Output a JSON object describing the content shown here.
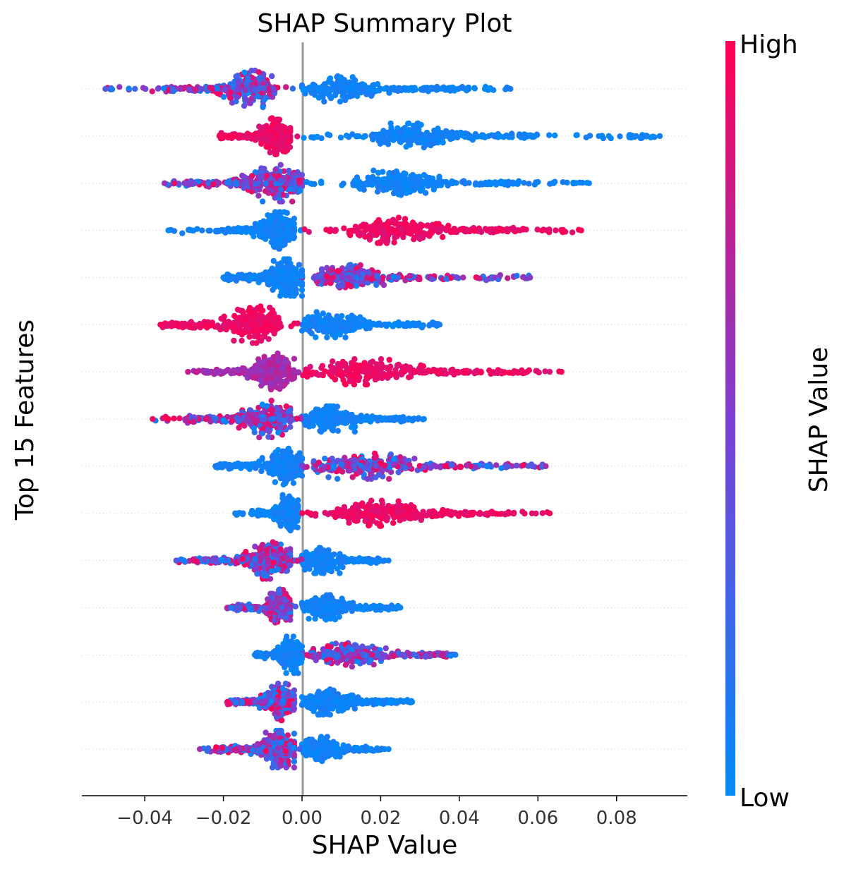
{
  "chart_data": {
    "type": "scatter",
    "subtype": "beeswarm",
    "title": "SHAP Summary Plot",
    "xlabel": "SHAP Value",
    "ylabel": "Top 15 Features",
    "xlim": [
      -0.056,
      0.098
    ],
    "xticks": [
      -0.04,
      -0.02,
      0.0,
      0.02,
      0.04,
      0.06,
      0.08
    ],
    "xtick_labels": [
      "−0.04",
      "−0.02",
      "0.00",
      "0.02",
      "0.04",
      "0.06",
      "0.08"
    ],
    "zero_line": 0.0,
    "grid": "dotted horizontal per feature row",
    "colorbar": {
      "label": "SHAP Value",
      "high_label": "High",
      "low_label": "Low",
      "high_color": "#ff0052",
      "mid_color": "#7d3fd3",
      "low_color": "#008bfb"
    },
    "features": [
      {
        "row": 1,
        "min": -0.05,
        "max": 0.053,
        "left_dense": [
          -0.035,
          -0.007
        ],
        "right_dense": [
          0.0,
          0.04
        ],
        "left_color": "mixed",
        "right_color": "low"
      },
      {
        "row": 2,
        "min": -0.021,
        "max": 0.091,
        "left_dense": [
          -0.021,
          -0.003
        ],
        "right_dense": [
          0.018,
          0.06
        ],
        "left_color": "high",
        "right_color": "low"
      },
      {
        "row": 3,
        "min": -0.035,
        "max": 0.073,
        "left_dense": [
          -0.03,
          0.0
        ],
        "right_dense": [
          0.013,
          0.055
        ],
        "left_color": "mixed",
        "right_color": "low"
      },
      {
        "row": 4,
        "min": -0.034,
        "max": 0.071,
        "left_dense": [
          -0.022,
          -0.002
        ],
        "right_dense": [
          0.012,
          0.058
        ],
        "left_color": "low",
        "right_color": "high"
      },
      {
        "row": 5,
        "min": -0.02,
        "max": 0.058,
        "left_dense": [
          -0.02,
          0.0
        ],
        "right_dense": [
          0.003,
          0.04
        ],
        "left_color": "low",
        "right_color": "mixed"
      },
      {
        "row": 6,
        "min": -0.036,
        "max": 0.035,
        "left_dense": [
          -0.036,
          -0.006
        ],
        "right_dense": [
          0.0,
          0.03
        ],
        "left_color": "high",
        "right_color": "low"
      },
      {
        "row": 7,
        "min": -0.029,
        "max": 0.066,
        "left_dense": [
          -0.025,
          -0.002
        ],
        "right_dense": [
          0.001,
          0.06
        ],
        "left_color": "mid",
        "right_color": "high"
      },
      {
        "row": 8,
        "min": -0.038,
        "max": 0.031,
        "left_dense": [
          -0.03,
          -0.003
        ],
        "right_dense": [
          0.0,
          0.028
        ],
        "left_color": "mixed",
        "right_color": "low"
      },
      {
        "row": 9,
        "min": -0.022,
        "max": 0.062,
        "left_dense": [
          -0.022,
          0.0
        ],
        "right_dense": [
          0.003,
          0.055
        ],
        "left_color": "low",
        "right_color": "mixed"
      },
      {
        "row": 10,
        "min": -0.017,
        "max": 0.063,
        "left_dense": [
          -0.013,
          -0.001
        ],
        "right_dense": [
          0.008,
          0.054
        ],
        "left_color": "low",
        "right_color": "high"
      },
      {
        "row": 11,
        "min": -0.032,
        "max": 0.022,
        "left_dense": [
          -0.028,
          -0.003
        ],
        "right_dense": [
          0.0,
          0.02
        ],
        "left_color": "mixed",
        "right_color": "low"
      },
      {
        "row": 12,
        "min": -0.019,
        "max": 0.025,
        "left_dense": [
          -0.017,
          -0.003
        ],
        "right_dense": [
          0.0,
          0.024
        ],
        "left_color": "mixed",
        "right_color": "low"
      },
      {
        "row": 13,
        "min": -0.012,
        "max": 0.039,
        "left_dense": [
          -0.012,
          0.0
        ],
        "right_dense": [
          0.002,
          0.039
        ],
        "left_color": "low",
        "right_color": "mixed"
      },
      {
        "row": 14,
        "min": -0.019,
        "max": 0.028,
        "left_dense": [
          -0.019,
          -0.002
        ],
        "right_dense": [
          0.0,
          0.026
        ],
        "left_color": "mixed",
        "right_color": "low"
      },
      {
        "row": 15,
        "min": -0.026,
        "max": 0.022,
        "left_dense": [
          -0.022,
          -0.002
        ],
        "right_dense": [
          0.0,
          0.02
        ],
        "left_color": "mixed",
        "right_color": "low"
      }
    ]
  }
}
